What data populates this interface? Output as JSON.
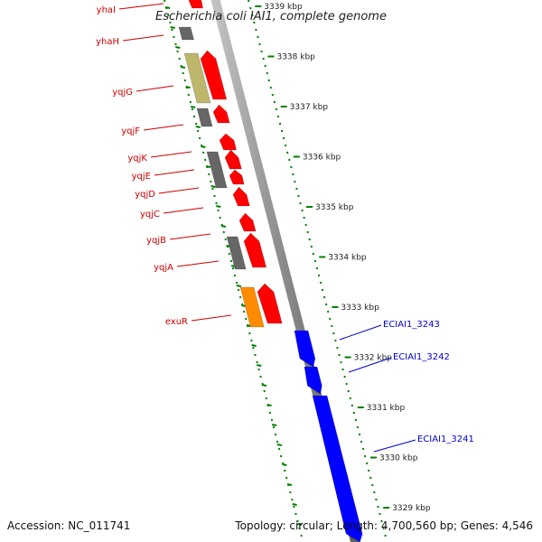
{
  "title": "Escherichia coli IAI1, complete genome",
  "footer": {
    "accession": "Accession: NC_011741",
    "summary": "Topology: circular; Length: 4,700,560 bp; Genes: 4,546"
  },
  "colors": {
    "forward_gene": "#ff0000",
    "gray_gene": "#666666",
    "khaki_gene": "#bdb76b",
    "orange_gene": "#ff8c00",
    "blue_gene": "#0000ff",
    "red_label": "#cc0000",
    "blue_label": "#0000cc",
    "tick": "#008000",
    "backbone": "#808080"
  },
  "scale_labels": [
    {
      "label": "3339 kbp",
      "kbp": 3339
    },
    {
      "label": "3338 kbp",
      "kbp": 3338
    },
    {
      "label": "3337 kbp",
      "kbp": 3337
    },
    {
      "label": "3336 kbp",
      "kbp": 3336
    },
    {
      "label": "3335 kbp",
      "kbp": 3335
    },
    {
      "label": "3334 kbp",
      "kbp": 3334
    },
    {
      "label": "3333 kbp",
      "kbp": 3333
    },
    {
      "label": "3332 kbp",
      "kbp": 3332
    },
    {
      "label": "3331 kbp",
      "kbp": 3331
    },
    {
      "label": "3330 kbp",
      "kbp": 3330
    },
    {
      "label": "3329 kbp",
      "kbp": 3329
    }
  ],
  "genes_left": [
    {
      "name": "yhaI",
      "type": "red"
    },
    {
      "name": "yhaH",
      "type": "gray"
    },
    {
      "name": "yqjG",
      "type": "red+khaki"
    },
    {
      "name": "yqjF",
      "type": "red+gray"
    },
    {
      "name": "yqjK",
      "type": "red+gray"
    },
    {
      "name": "yqjE",
      "type": "red"
    },
    {
      "name": "yqjD",
      "type": "red"
    },
    {
      "name": "yqjC",
      "type": "red"
    },
    {
      "name": "yqjB",
      "type": "red+gray"
    },
    {
      "name": "yqjA",
      "type": "red+gray"
    },
    {
      "name": "exuR",
      "type": "red+orange"
    }
  ],
  "genes_right": [
    {
      "name": "ECIAI1_3243",
      "type": "blue"
    },
    {
      "name": "ECIAI1_3242",
      "type": "blue"
    },
    {
      "name": "ECIAI1_3241",
      "type": "blue"
    }
  ]
}
